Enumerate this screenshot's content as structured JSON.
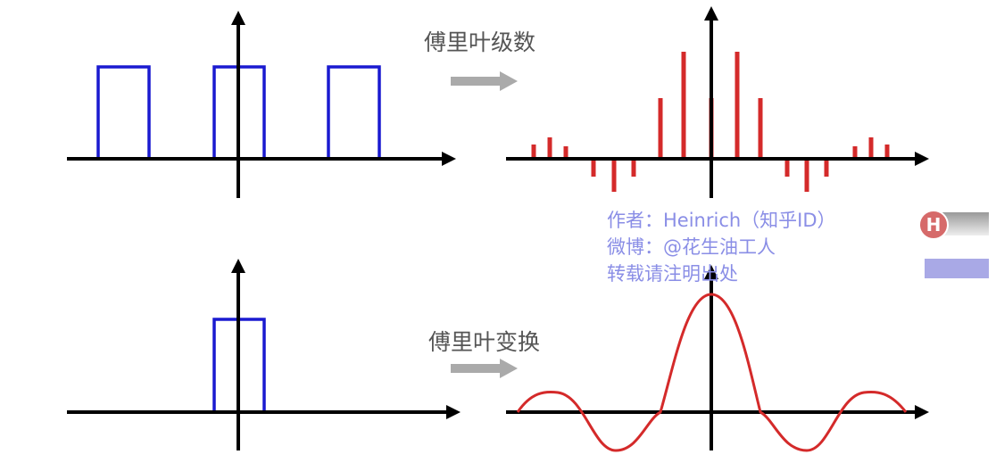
{
  "labels": {
    "series": "傅里叶级数",
    "transform": "傅里叶变换"
  },
  "watermark": {
    "lines": [
      "作者：Heinrich（知乎ID）",
      "微博：@花生油工人",
      "转载请注明出处"
    ]
  },
  "badge": {
    "letter": "H"
  }
}
